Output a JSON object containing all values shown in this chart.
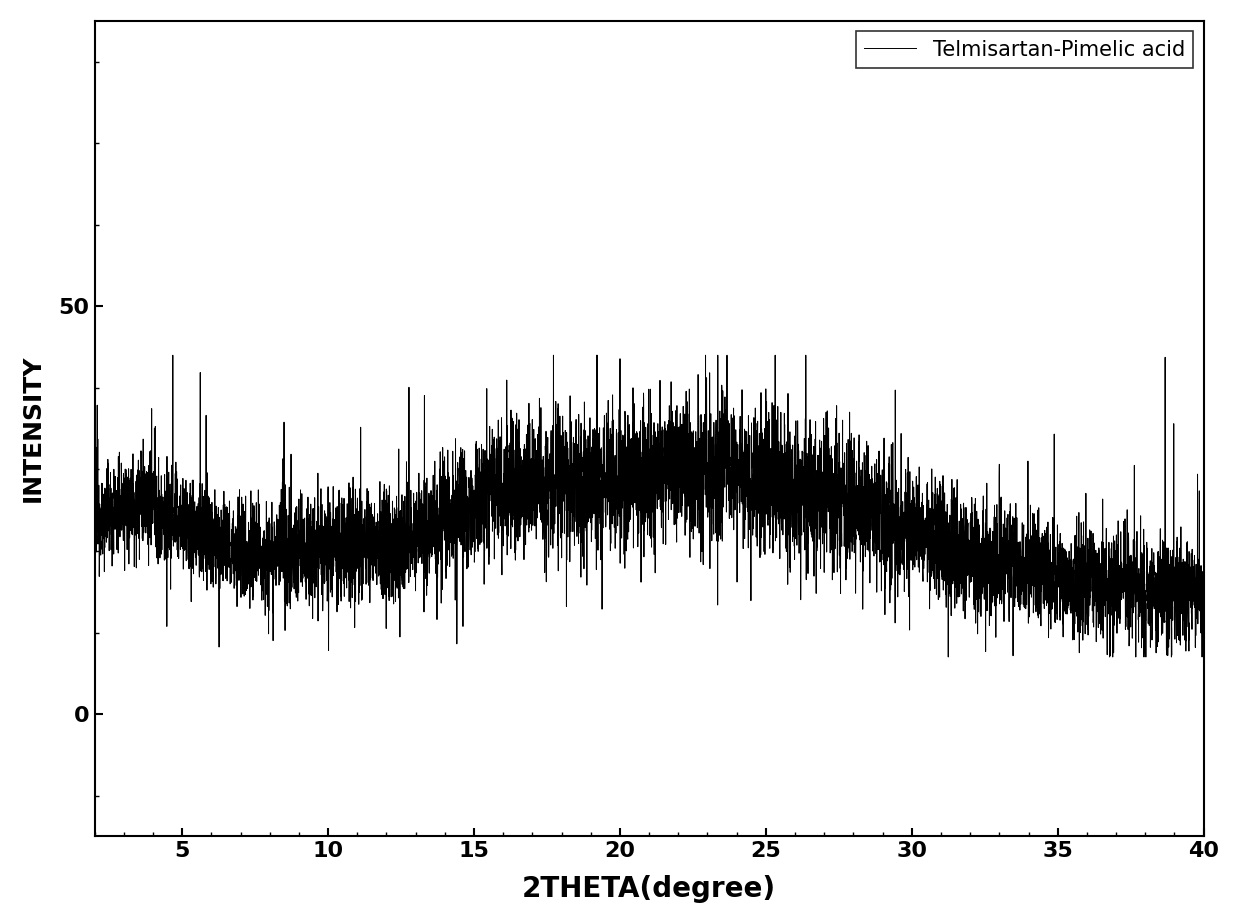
{
  "xlabel": "2THETA(degree)",
  "ylabel": "INTENSITY",
  "legend_label": "Telmisartan-Pimelic acid",
  "line_color": "#000000",
  "line_width": 0.7,
  "xlim": [
    2,
    40
  ],
  "ylim": [
    -15,
    85
  ],
  "yticks": [
    0,
    50
  ],
  "xticks": [
    5,
    10,
    15,
    20,
    25,
    30,
    35,
    40
  ],
  "xlabel_fontsize": 20,
  "ylabel_fontsize": 18,
  "tick_fontsize": 16,
  "legend_fontsize": 15,
  "background_color": "#ffffff",
  "seed": 12345,
  "n_points": 7600
}
